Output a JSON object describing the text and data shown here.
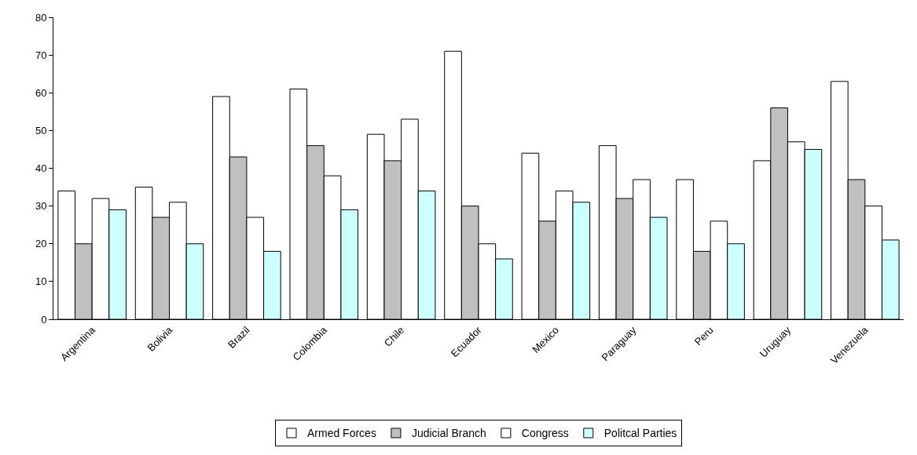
{
  "chart_data": {
    "type": "bar",
    "categories": [
      "Argentina",
      "Bolivia",
      "Brazil",
      "Colombia",
      "Chile",
      "Ecuador",
      "Mexico",
      "Paraguay",
      "Peru",
      "Uruguay",
      "Venezuela"
    ],
    "series": [
      {
        "name": "Armed Forces",
        "color": "#ffffff",
        "values": [
          34,
          35,
          59,
          61,
          49,
          71,
          44,
          46,
          37,
          42,
          63
        ]
      },
      {
        "name": "Judicial Branch",
        "color": "#c0c0c0",
        "values": [
          20,
          27,
          43,
          46,
          42,
          30,
          26,
          32,
          18,
          56,
          37
        ]
      },
      {
        "name": "Congress",
        "color": "#ffffff",
        "values": [
          32,
          31,
          27,
          38,
          53,
          20,
          34,
          37,
          26,
          47,
          30
        ]
      },
      {
        "name": "Politcal Parties",
        "color": "#ccffff",
        "values": [
          29,
          20,
          18,
          29,
          34,
          16,
          31,
          27,
          20,
          45,
          21
        ]
      }
    ],
    "ylim": [
      0,
      80
    ],
    "yticks": [
      0,
      10,
      20,
      30,
      40,
      50,
      60,
      70,
      80
    ],
    "legend": "bottom"
  }
}
